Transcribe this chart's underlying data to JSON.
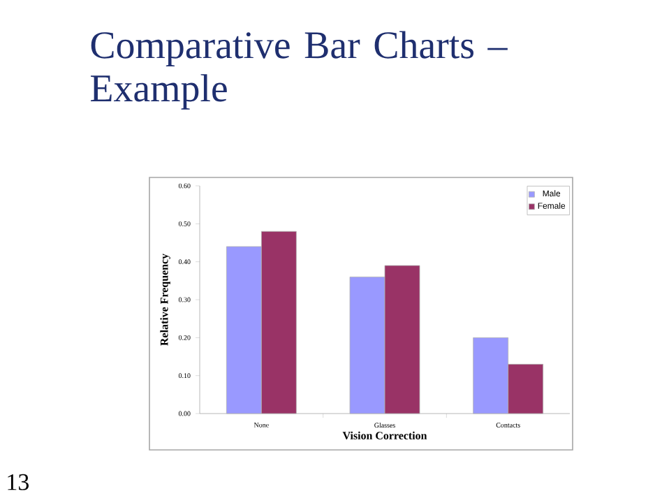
{
  "chart_data": {
    "type": "bar",
    "title": "Comparative Bar Charts – Example",
    "categories": [
      "None",
      "Glasses",
      "Contacts"
    ],
    "series": [
      {
        "name": "Male",
        "color": "#9999ff",
        "values": [
          0.44,
          0.36,
          0.2
        ]
      },
      {
        "name": "Female",
        "color": "#993366",
        "values": [
          0.48,
          0.39,
          0.13
        ]
      }
    ],
    "xlabel": "Vision Correction",
    "ylabel": "Relative Frequency",
    "ylim": [
      0,
      0.6
    ],
    "yticks": [
      {
        "value": 0,
        "label": "0.00"
      },
      {
        "value": 0.1,
        "label": "0.10"
      },
      {
        "value": 0.2,
        "label": "0.20"
      },
      {
        "value": 0.3,
        "label": "0.30"
      },
      {
        "value": 0.4,
        "label": "0.40"
      },
      {
        "value": 0.5,
        "label": "0.50"
      },
      {
        "value": 0.6,
        "label": "0.60"
      }
    ],
    "legend": "top right",
    "grid": false,
    "annotations": [
      "13"
    ]
  }
}
